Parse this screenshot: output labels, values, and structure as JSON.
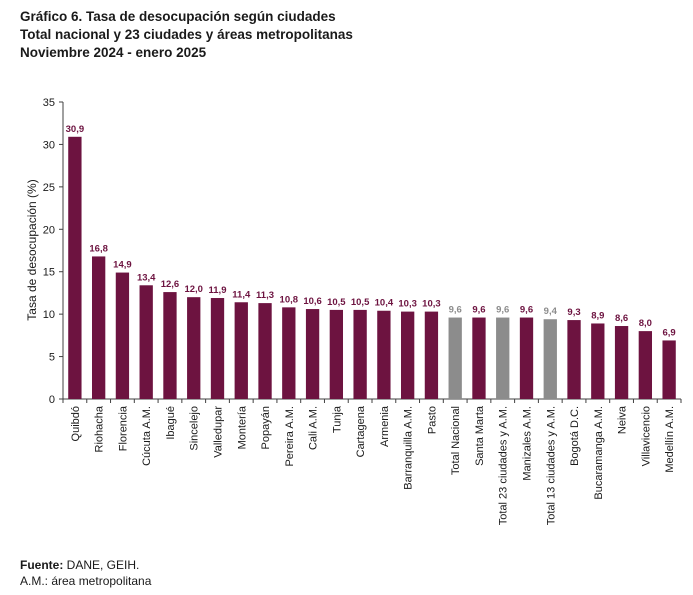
{
  "chart_data": {
    "type": "bar",
    "title": "Gráfico 6. Tasa de desocupación según ciudades",
    "subtitle": "Total nacional y 23 ciudades y áreas metropolitanas",
    "period": "Noviembre 2024 - enero 2025",
    "ylabel": "Tasa de desocupación (%)",
    "xlabel": "",
    "ylim": [
      0,
      35
    ],
    "yticks": [
      0,
      5,
      10,
      15,
      20,
      25,
      30,
      35
    ],
    "grid": false,
    "categories": [
      "Quibdó",
      "Riohacha",
      "Florencia",
      "Cúcuta A.M.",
      "Ibagué",
      "Sincelejo",
      "Valledupar",
      "Montería",
      "Popayán",
      "Pereira A.M.",
      "Cali A.M.",
      "Tunja",
      "Cartagena",
      "Armenia",
      "Barranquilla A.M.",
      "Pasto",
      "Total Nacional",
      "Santa Marta",
      "Total 23 ciudades y A.M.",
      "Manizales A.M.",
      "Total 13 ciudades y A.M.",
      "Bogotá D.C.",
      "Bucaramanga A.M.",
      "Neiva",
      "Villavicencio",
      "Medellín A.M."
    ],
    "values": [
      30.9,
      16.8,
      14.9,
      13.4,
      12.6,
      12.0,
      11.9,
      11.4,
      11.3,
      10.8,
      10.6,
      10.5,
      10.5,
      10.4,
      10.3,
      10.3,
      9.6,
      9.6,
      9.6,
      9.6,
      9.4,
      9.3,
      8.9,
      8.6,
      8.0,
      6.9
    ],
    "value_labels": [
      "30,9",
      "16,8",
      "14,9",
      "13,4",
      "12,6",
      "12,0",
      "11,9",
      "11,4",
      "11,3",
      "10,8",
      "10,6",
      "10,5",
      "10,5",
      "10,4",
      "10,3",
      "10,3",
      "9,6",
      "9,6",
      "9,6",
      "9,6",
      "9,4",
      "9,3",
      "8,9",
      "8,6",
      "8,0",
      "6,9"
    ],
    "highlight_categories": [
      "Total Nacional",
      "Total 23 ciudades y A.M.",
      "Total 13 ciudades y A.M."
    ],
    "colors": {
      "bar": "#6d1340",
      "bar_highlight": "#8c8c8c",
      "label": "#6d1340",
      "label_highlight": "#8c8c8c",
      "axis": "#404040"
    }
  },
  "footer": {
    "source_label": "Fuente:",
    "source_text": " DANE, GEIH.",
    "note": "A.M.: área metropolitana"
  }
}
